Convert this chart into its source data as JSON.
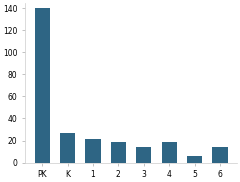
{
  "categories": [
    "PK",
    "K",
    "1",
    "2",
    "3",
    "4",
    "5",
    "6"
  ],
  "values": [
    140,
    27,
    21,
    19,
    14,
    19,
    6,
    14
  ],
  "bar_color": "#2e6584",
  "ylim": [
    0,
    145
  ],
  "yticks": [
    0,
    20,
    40,
    60,
    80,
    100,
    120,
    140
  ],
  "background_color": "#ffffff"
}
